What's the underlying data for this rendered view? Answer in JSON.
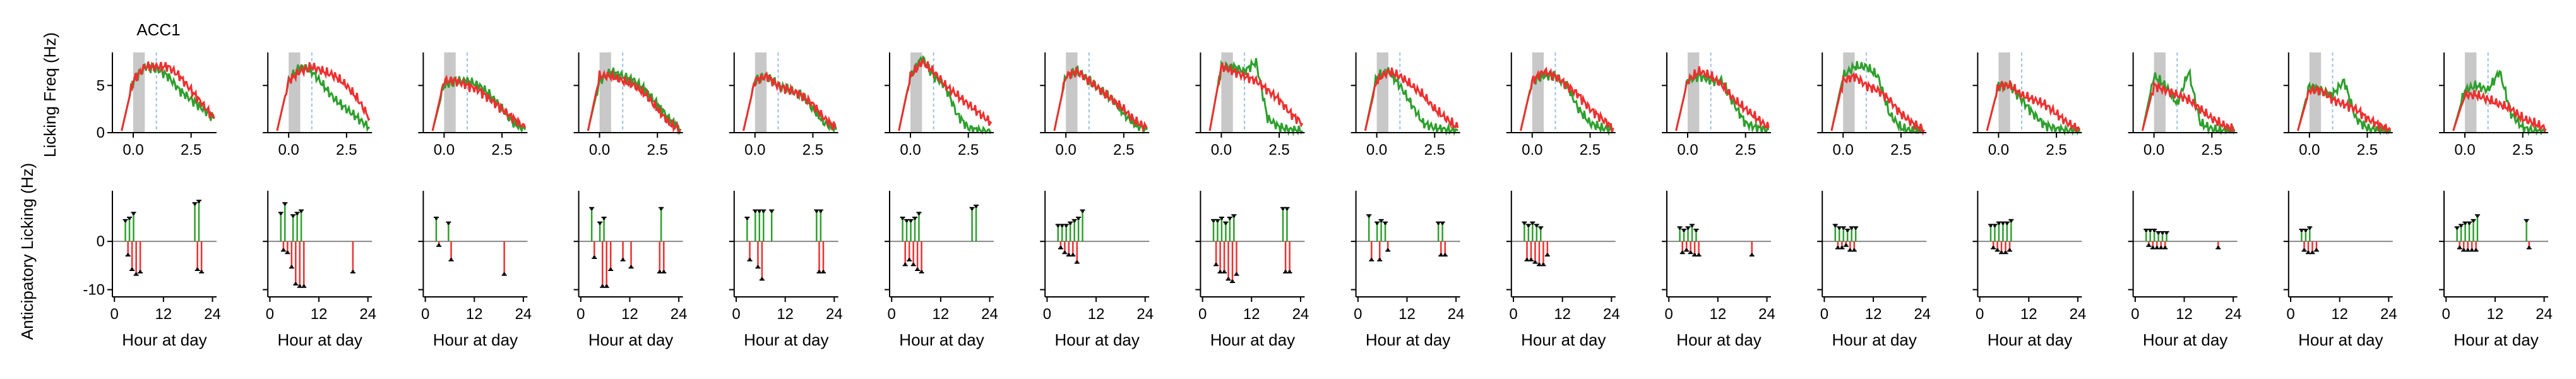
{
  "figure": {
    "panel_title": "ACC1",
    "ylabel_top": "Licking Freq (Hz)",
    "ylabel_bottom": "Anticipatory Licking (Hz)",
    "xlabel_bottom": "Hour at day",
    "colors": {
      "green": "#2ca02c",
      "red": "#ee2f2f",
      "shade": "#c8c8c8",
      "dash": "#9ec2e6",
      "zero": "#888888",
      "axis": "#000000"
    }
  },
  "chart_data": [
    {
      "type": "line",
      "title": "ACC1",
      "xlabel": "",
      "ylabel": "Licking Freq (Hz)",
      "n_panels": 16,
      "xlim": [
        -0.9,
        3.6
      ],
      "ylim": [
        0,
        8.5
      ],
      "xticks": [
        0.0,
        2.5
      ],
      "yticks": [
        0,
        5
      ],
      "shaded_interval": [
        0.0,
        0.5
      ],
      "dashed_line_x": 1.0,
      "series": [
        {
          "color": "green",
          "x": [
            -0.5,
            0,
            0.5,
            1,
            1.5,
            2,
            2.5,
            3,
            3.5
          ],
          "panels": [
            [
              0.2,
              5.5,
              7,
              6.8,
              6,
              4.5,
              3.5,
              2.5,
              1.5
            ],
            [
              0.2,
              5.5,
              7,
              6.5,
              5,
              3.5,
              2.5,
              1.5,
              0.5
            ],
            [
              0.2,
              5,
              5.5,
              5.5,
              5,
              4,
              2.5,
              1,
              0.3
            ],
            [
              0.2,
              5.5,
              6.5,
              6,
              5.5,
              4.5,
              3,
              1.5,
              0.4
            ],
            [
              0.2,
              5.5,
              6,
              5,
              4.5,
              4,
              2.5,
              1,
              0.3
            ],
            [
              0.2,
              6,
              8,
              6,
              5,
              2,
              0.5,
              0.2,
              0.1
            ],
            [
              0.2,
              6,
              6.5,
              5.5,
              4.5,
              3.5,
              2,
              0.8,
              0.3
            ],
            [
              0.2,
              7,
              7,
              6.5,
              7.5,
              1.5,
              0.6,
              0.3,
              0.2
            ],
            [
              0.2,
              6,
              6.5,
              5,
              3,
              1,
              0.5,
              0.3,
              0.2
            ],
            [
              0.2,
              5.5,
              6,
              6,
              5,
              2.5,
              1,
              0.5,
              0.3
            ],
            [
              0.2,
              5.5,
              6,
              5.5,
              5.5,
              3,
              1,
              0.5,
              0.3
            ],
            [
              0.2,
              6,
              7,
              7,
              6,
              2,
              0.5,
              0.2,
              0.1
            ],
            [
              0.2,
              5,
              5,
              3.5,
              2,
              0.8,
              0.4,
              0.2,
              0.1
            ],
            [
              0.2,
              6,
              5,
              3,
              6.5,
              1,
              0.4,
              0.2,
              0.1
            ],
            [
              0.2,
              5,
              4.5,
              4,
              5.5,
              1.5,
              0.5,
              0.2,
              0.1
            ],
            [
              0.2,
              4.5,
              5,
              4.5,
              6.5,
              2,
              0.5,
              0.2,
              0.1
            ]
          ]
        },
        {
          "color": "red",
          "x": [
            -0.5,
            0,
            0.5,
            1,
            1.5,
            2,
            2.5,
            3,
            3.5
          ],
          "panels": [
            [
              0.2,
              5.5,
              7,
              7,
              7,
              6,
              4.5,
              3,
              1.5
            ],
            [
              0.2,
              5.5,
              6.5,
              7,
              6.5,
              6,
              5,
              3.5,
              1.5
            ],
            [
              0.2,
              5.5,
              5.5,
              5,
              4.5,
              3.5,
              2.5,
              1.5,
              0.5
            ],
            [
              0.2,
              6,
              6,
              5.5,
              5,
              4,
              2.5,
              1,
              0.3
            ],
            [
              0.2,
              5.5,
              6,
              5,
              4.5,
              4,
              3,
              1.5,
              0.5
            ],
            [
              0.2,
              6,
              7.5,
              6.5,
              5,
              4,
              3,
              2,
              1
            ],
            [
              0.2,
              6,
              6.5,
              5.5,
              4.5,
              3.5,
              2.5,
              1.2,
              0.5
            ],
            [
              0.2,
              7,
              6.5,
              6,
              5.5,
              4.5,
              3.5,
              2,
              1
            ],
            [
              0.2,
              5.5,
              6.5,
              6,
              5,
              4,
              2.5,
              1.5,
              0.5
            ],
            [
              0.2,
              5.5,
              6.5,
              6,
              5,
              4,
              2.5,
              1.5,
              0.5
            ],
            [
              0.2,
              5.5,
              6.5,
              6,
              5,
              3.5,
              2.5,
              1.5,
              0.5
            ],
            [
              0.2,
              5.5,
              6,
              5,
              4.5,
              3.5,
              2,
              1,
              0.3
            ],
            [
              0.2,
              5,
              5,
              4,
              3.5,
              3,
              2,
              1,
              0.3
            ],
            [
              0.2,
              5,
              4.5,
              4,
              3.5,
              2.5,
              1.5,
              0.8,
              0.3
            ],
            [
              0.2,
              4.5,
              4.5,
              3.5,
              3,
              2.5,
              1.5,
              0.8,
              0.3
            ],
            [
              0.2,
              4,
              4,
              3.5,
              3,
              2.5,
              1.5,
              1,
              0.4
            ]
          ]
        }
      ]
    },
    {
      "type": "bar",
      "title": "",
      "xlabel": "Hour at day",
      "ylabel": "Anticipatory Licking (Hz)",
      "n_panels": 16,
      "xlim": [
        -0.5,
        25
      ],
      "ylim": [
        -11.5,
        10.5
      ],
      "xticks": [
        0,
        12,
        24
      ],
      "yticks": [
        -10,
        0
      ],
      "x": [
        2,
        3,
        4,
        5,
        6,
        7,
        8,
        9,
        10,
        12,
        19,
        20,
        21
      ],
      "panels": [
        {
          "green": [
            0,
            4.5,
            5,
            6,
            0,
            0,
            0,
            0,
            0,
            0,
            0,
            8,
            8.5
          ],
          "red": [
            0,
            3,
            6,
            7,
            6.5,
            0,
            0,
            0,
            0,
            0,
            0,
            6,
            6.5
          ]
        },
        {
          "green": [
            0,
            6,
            8,
            0,
            5.5,
            6,
            6.5,
            0,
            0,
            0,
            0,
            0,
            0
          ],
          "red": [
            0,
            2,
            2.5,
            5.5,
            9,
            9.5,
            9.5,
            0,
            0,
            0,
            0,
            6.5,
            0
          ]
        },
        {
          "green": [
            0,
            5,
            0,
            0,
            4,
            0,
            0,
            0,
            0,
            0,
            0,
            0,
            0
          ],
          "red": [
            0,
            1,
            0,
            0,
            4,
            0,
            0,
            0,
            0,
            0,
            7,
            0,
            0
          ]
        },
        {
          "green": [
            0,
            7,
            0,
            4,
            5,
            0,
            0,
            0,
            0,
            0,
            0,
            7,
            0
          ],
          "red": [
            0,
            3.5,
            0,
            9.5,
            9.5,
            6,
            0,
            0,
            4,
            5.5,
            6.5,
            6.5,
            0
          ]
        },
        {
          "green": [
            0,
            5,
            0,
            6.5,
            6.5,
            6.5,
            0,
            6.5,
            0,
            0,
            0,
            6.5,
            6.5
          ],
          "red": [
            0,
            4,
            0,
            5.5,
            8,
            0,
            0,
            0,
            0,
            0,
            0,
            6.5,
            6.5
          ]
        },
        {
          "green": [
            0,
            5,
            4.5,
            4.5,
            5,
            6,
            0,
            0,
            0,
            0,
            0,
            7,
            7.5
          ],
          "red": [
            0,
            5,
            4,
            5,
            6,
            6.5,
            0,
            0,
            0,
            0,
            0,
            0,
            0
          ]
        },
        {
          "green": [
            0,
            3.5,
            3.5,
            3.5,
            4,
            4.5,
            5,
            6.5,
            0,
            0,
            0,
            0,
            0
          ],
          "red": [
            0,
            1.5,
            2.5,
            3,
            3,
            4.5,
            0,
            0,
            0,
            0,
            0,
            0,
            0
          ]
        },
        {
          "green": [
            0,
            4.5,
            4.5,
            5,
            4,
            5,
            5.5,
            0,
            0,
            0,
            0,
            7,
            7
          ],
          "red": [
            0,
            5,
            6.5,
            6.5,
            8,
            8.5,
            7,
            0,
            0,
            0,
            0,
            6.5,
            6.5
          ]
        },
        {
          "green": [
            0,
            5.5,
            0,
            4,
            4.5,
            4,
            0,
            0,
            0,
            0,
            0,
            4,
            4
          ],
          "red": [
            0,
            4,
            0,
            4,
            0,
            2,
            0,
            0,
            0,
            0,
            0,
            3,
            3
          ]
        },
        {
          "green": [
            0,
            4,
            3.5,
            4,
            3.5,
            3,
            0,
            0,
            0,
            0,
            0,
            0,
            0
          ],
          "red": [
            0,
            4,
            4,
            4.5,
            5,
            5,
            3,
            0,
            0,
            0,
            0,
            0,
            0
          ]
        },
        {
          "green": [
            0,
            3,
            2.5,
            3,
            3.5,
            2.5,
            0,
            0,
            0,
            0,
            0,
            0,
            0
          ],
          "red": [
            0,
            2.5,
            2,
            2.5,
            3,
            3,
            0,
            0,
            0,
            0,
            0,
            3,
            0
          ]
        },
        {
          "green": [
            0,
            3.5,
            3,
            3,
            2.5,
            3,
            3,
            0,
            0,
            0,
            0,
            0,
            0
          ],
          "red": [
            0,
            1.5,
            1.5,
            1,
            2,
            2,
            0,
            0,
            0,
            0,
            0,
            0,
            0
          ]
        },
        {
          "green": [
            0,
            3.5,
            3.5,
            4,
            4,
            4,
            4.5,
            0,
            0,
            0,
            0,
            0,
            0
          ],
          "red": [
            0,
            1.5,
            2,
            2.5,
            2.5,
            2,
            0,
            0,
            0,
            0,
            0,
            0,
            0
          ]
        },
        {
          "green": [
            0,
            2.5,
            2.5,
            2.5,
            2,
            2,
            2,
            0,
            0,
            0,
            0,
            0,
            0
          ],
          "red": [
            0,
            1,
            1.5,
            1.5,
            1.5,
            1.5,
            0,
            0,
            0,
            0,
            0,
            1.5,
            0
          ]
        },
        {
          "green": [
            0,
            2.5,
            2.5,
            3,
            0,
            0,
            0,
            0,
            0,
            0,
            0,
            0,
            0
          ],
          "red": [
            0,
            2,
            2.5,
            2.5,
            2,
            0,
            0,
            0,
            0,
            0,
            0,
            0,
            0
          ]
        },
        {
          "green": [
            0,
            3,
            3.5,
            4,
            4,
            4.5,
            5.5,
            0,
            0,
            0,
            0,
            4.5,
            0
          ],
          "red": [
            0,
            1.5,
            2,
            2,
            2,
            2,
            0,
            0,
            0,
            0,
            0,
            1.5,
            0
          ]
        }
      ]
    }
  ]
}
